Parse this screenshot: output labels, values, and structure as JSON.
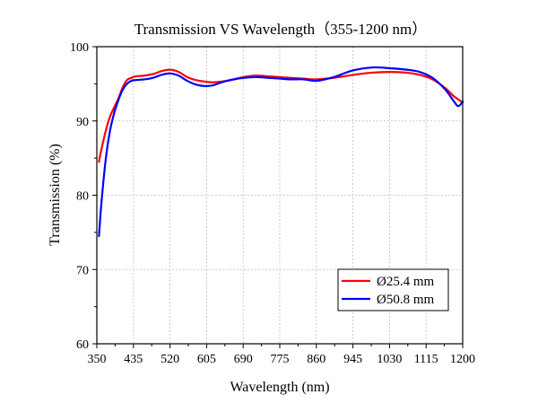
{
  "chart_data": {
    "type": "line",
    "title": "Transmission VS Wavelength（355-1200 nm）",
    "xlabel": "Wavelength (nm)",
    "ylabel": "Transmission (%)",
    "xlim": [
      350,
      1200
    ],
    "ylim": [
      60,
      100
    ],
    "xticks": [
      350,
      435,
      520,
      605,
      690,
      775,
      860,
      945,
      1030,
      1115,
      1200
    ],
    "yticks": [
      60,
      70,
      80,
      90,
      100
    ],
    "grid": true,
    "legend_position": "bottom-right",
    "series": [
      {
        "name": "Ø25.4 mm",
        "color": "#ff0000",
        "x": [
          355,
          360,
          370,
          380,
          390,
          400,
          410,
          420,
          430,
          440,
          460,
          480,
          500,
          520,
          540,
          560,
          580,
          600,
          620,
          640,
          660,
          690,
          720,
          750,
          775,
          800,
          830,
          860,
          900,
          945,
          990,
          1030,
          1070,
          1100,
          1130,
          1160,
          1180,
          1200
        ],
        "y": [
          84.5,
          86.0,
          88.5,
          90.5,
          91.8,
          93.0,
          94.5,
          95.5,
          95.8,
          96.0,
          96.1,
          96.3,
          96.7,
          96.9,
          96.6,
          95.9,
          95.5,
          95.3,
          95.2,
          95.3,
          95.5,
          95.9,
          96.1,
          96.0,
          95.9,
          95.8,
          95.7,
          95.6,
          95.8,
          96.2,
          96.5,
          96.6,
          96.5,
          96.2,
          95.6,
          94.4,
          93.3,
          92.5
        ]
      },
      {
        "name": "Ø50.8 mm",
        "color": "#0000ff",
        "x": [
          355,
          360,
          370,
          380,
          390,
          400,
          410,
          420,
          430,
          440,
          460,
          480,
          500,
          520,
          540,
          560,
          580,
          600,
          620,
          640,
          660,
          690,
          720,
          750,
          775,
          800,
          830,
          860,
          900,
          945,
          990,
          1030,
          1070,
          1100,
          1130,
          1160,
          1180,
          1190,
          1200
        ],
        "y": [
          74.5,
          78.5,
          84.5,
          88.5,
          91.0,
          92.8,
          94.2,
          95.0,
          95.4,
          95.5,
          95.6,
          95.8,
          96.2,
          96.4,
          96.1,
          95.4,
          94.9,
          94.7,
          94.8,
          95.2,
          95.5,
          95.8,
          95.9,
          95.8,
          95.7,
          95.6,
          95.6,
          95.4,
          95.9,
          96.8,
          97.2,
          97.1,
          96.9,
          96.6,
          95.8,
          94.2,
          92.6,
          92.0,
          92.6
        ]
      }
    ]
  }
}
